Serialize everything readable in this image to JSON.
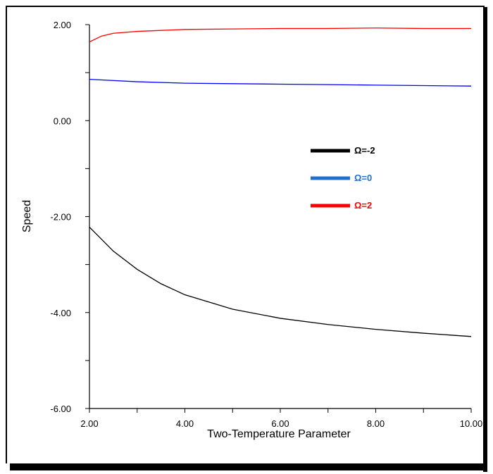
{
  "chart_data": {
    "type": "line",
    "xlabel": "Two-Temperature Parameter",
    "ylabel": "Speed",
    "xlim": [
      2,
      10
    ],
    "ylim": [
      -6,
      2
    ],
    "x_ticks": [
      "2.00",
      "4.00",
      "6.00",
      "8.00",
      "10.00"
    ],
    "y_ticks": [
      "2.00",
      "0.00",
      "-2.00",
      "-4.00",
      "-6.00"
    ],
    "grid": false,
    "legend_position": "center-right",
    "series": [
      {
        "name": "Ω=-2",
        "color": "#000000",
        "x": [
          2,
          2.5,
          3,
          3.5,
          4,
          5,
          6,
          7,
          8,
          9,
          10
        ],
        "y": [
          -2.22,
          -2.72,
          -3.1,
          -3.4,
          -3.63,
          -3.93,
          -4.12,
          -4.25,
          -4.35,
          -4.43,
          -4.5
        ]
      },
      {
        "name": "Ω=0",
        "color": "#0000ff",
        "x": [
          2,
          3,
          4,
          5,
          6,
          7,
          8,
          9,
          10
        ],
        "y": [
          0.86,
          0.81,
          0.78,
          0.77,
          0.76,
          0.75,
          0.74,
          0.73,
          0.72
        ]
      },
      {
        "name": "Ω=2",
        "color": "#ff0000",
        "x": [
          2,
          2.25,
          2.5,
          3,
          3.5,
          4,
          5,
          6,
          7,
          8,
          9,
          10
        ],
        "y": [
          1.64,
          1.76,
          1.82,
          1.86,
          1.88,
          1.9,
          1.91,
          1.92,
          1.92,
          1.93,
          1.92,
          1.92
        ]
      }
    ],
    "legend": [
      {
        "label": "Ω=-2",
        "line_color": "#000000",
        "text_color": "#000000"
      },
      {
        "label": "Ω=0",
        "line_color": "#1f6fcf",
        "text_color": "#1f6fcf"
      },
      {
        "label": "Ω=2",
        "line_color": "#ff0000",
        "text_color": "#ff0000"
      }
    ]
  }
}
